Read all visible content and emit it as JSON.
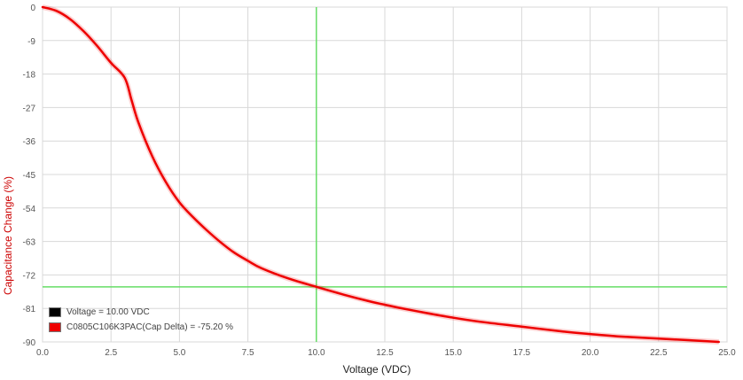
{
  "colors": {
    "curve": "#ee0000",
    "crosshair": "#66dd66",
    "grid": "#d8d8d8",
    "ylabel": "#cc0000",
    "xlabel": "#222222",
    "voltage_swatch": "#000000"
  },
  "legend": {
    "voltage_text": "Voltage = 10.00 VDC",
    "cap_text": "C0805C106K3PAC(Cap Delta) = -75.20 %"
  },
  "chart_data": {
    "type": "line",
    "xlabel": "Voltage (VDC)",
    "ylabel": "Capacitance Change (%)",
    "xlim": [
      0,
      25
    ],
    "ylim": [
      -90,
      0
    ],
    "xticks": [
      0,
      2.5,
      5,
      7.5,
      10,
      12.5,
      15,
      17.5,
      20,
      22.5,
      25
    ],
    "xtick_labels": [
      "0.0",
      "2.5",
      "5.0",
      "7.5",
      "10.0",
      "12.5",
      "15.0",
      "17.5",
      "20.0",
      "22.5",
      "25.0"
    ],
    "yticks": [
      0,
      -9,
      -18,
      -27,
      -36,
      -45,
      -54,
      -63,
      -72,
      -81,
      -90
    ],
    "ytick_labels": [
      "0",
      "-9",
      "-18",
      "-27",
      "-36",
      "-45",
      "-54",
      "-63",
      "-72",
      "-81",
      "-90"
    ],
    "grid": true,
    "crosshair": {
      "x": 10.0,
      "y": -75.2
    },
    "series": [
      {
        "name": "C0805C106K3PAC(Cap Delta)",
        "x": [
          0,
          0.5,
          1.0,
          1.5,
          2.0,
          2.5,
          3.0,
          3.25,
          3.5,
          4.0,
          4.5,
          5.0,
          5.5,
          6.0,
          6.5,
          7.0,
          7.5,
          8.0,
          9.0,
          10.0,
          11.0,
          12.0,
          12.5,
          13.0,
          14.0,
          15.0,
          16.0,
          17.5,
          19.0,
          20.0,
          21.0,
          22.5,
          23.5,
          24.7
        ],
        "values": [
          0,
          -1,
          -3.2,
          -6.5,
          -10.5,
          -15,
          -19,
          -25,
          -31,
          -40,
          -47,
          -52.5,
          -56.5,
          -60,
          -63.2,
          -66,
          -68.2,
          -70.2,
          -73,
          -75.2,
          -77.3,
          -79.2,
          -80,
          -80.8,
          -82.2,
          -83.5,
          -84.6,
          -85.9,
          -87.2,
          -87.9,
          -88.5,
          -89.1,
          -89.5,
          -90
        ]
      }
    ]
  }
}
